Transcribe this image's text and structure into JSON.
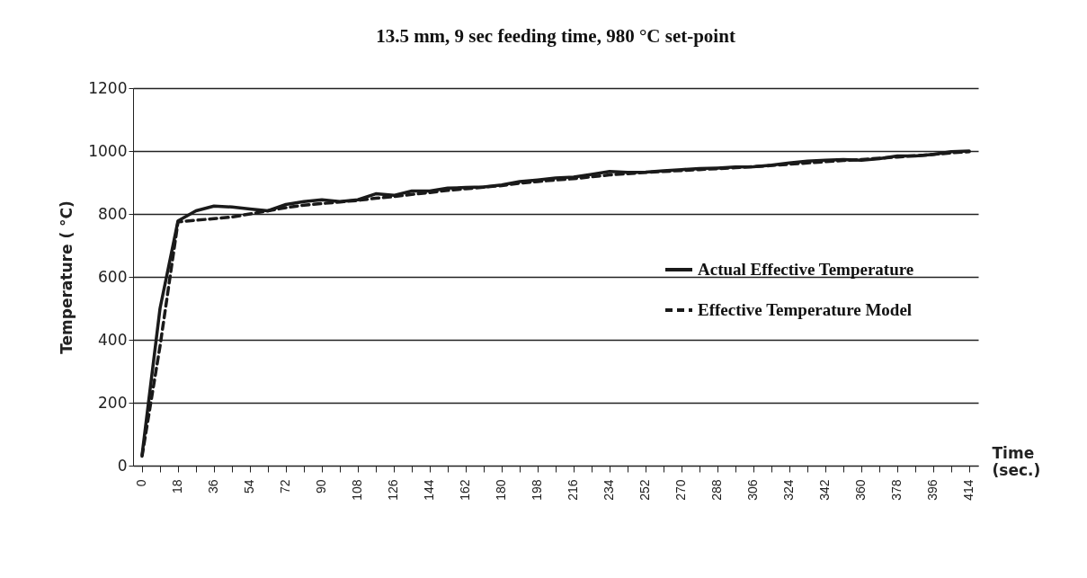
{
  "chart_data": {
    "type": "line",
    "title": "13.5 mm, 9 sec feeding time, 980 °C set-point",
    "xlabel": "Time (sec.)",
    "ylabel": "Temperature ( °C)",
    "categories": [
      "0",
      null,
      "18",
      null,
      "36",
      null,
      "54",
      null,
      "72",
      null,
      "90",
      null,
      "108",
      null,
      "126",
      null,
      "144",
      null,
      "162",
      null,
      "180",
      null,
      "198",
      null,
      "216",
      null,
      "234",
      null,
      "252",
      null,
      "270",
      null,
      "288",
      null,
      "306",
      null,
      "324",
      null,
      "342",
      null,
      "360",
      null,
      "378",
      null,
      "396",
      null,
      "414"
    ],
    "series": [
      {
        "name": "Actual Effective Temperature",
        "color": "#1a1a1a",
        "line_style": "solid",
        "values": [
          34,
          500,
          778,
          810,
          825,
          822,
          816,
          810,
          830,
          839,
          845,
          839,
          845,
          864,
          859,
          873,
          873,
          882,
          884,
          886,
          892,
          903,
          908,
          914,
          917,
          926,
          935,
          932,
          933,
          937,
          941,
          944,
          946,
          949,
          950,
          955,
          962,
          968,
          971,
          973,
          971,
          976,
          984,
          984,
          989,
          998,
          1000
        ]
      },
      {
        "name": "Effective Temperature Model",
        "color": "#1a1a1a",
        "line_style": "dashed",
        "values": [
          30,
          380,
          775,
          780,
          785,
          790,
          800,
          810,
          820,
          828,
          833,
          838,
          843,
          850,
          855,
          862,
          868,
          875,
          880,
          885,
          890,
          898,
          903,
          908,
          912,
          918,
          924,
          928,
          932,
          935,
          938,
          941,
          944,
          947,
          950,
          954,
          958,
          962,
          966,
          970,
          973,
          977,
          981,
          985,
          989,
          994,
          998
        ]
      }
    ],
    "ylim": [
      0,
      1200
    ],
    "yticks": [
      0,
      200,
      400,
      600,
      800,
      1000,
      1200
    ],
    "grid": "y",
    "legend": "right"
  }
}
